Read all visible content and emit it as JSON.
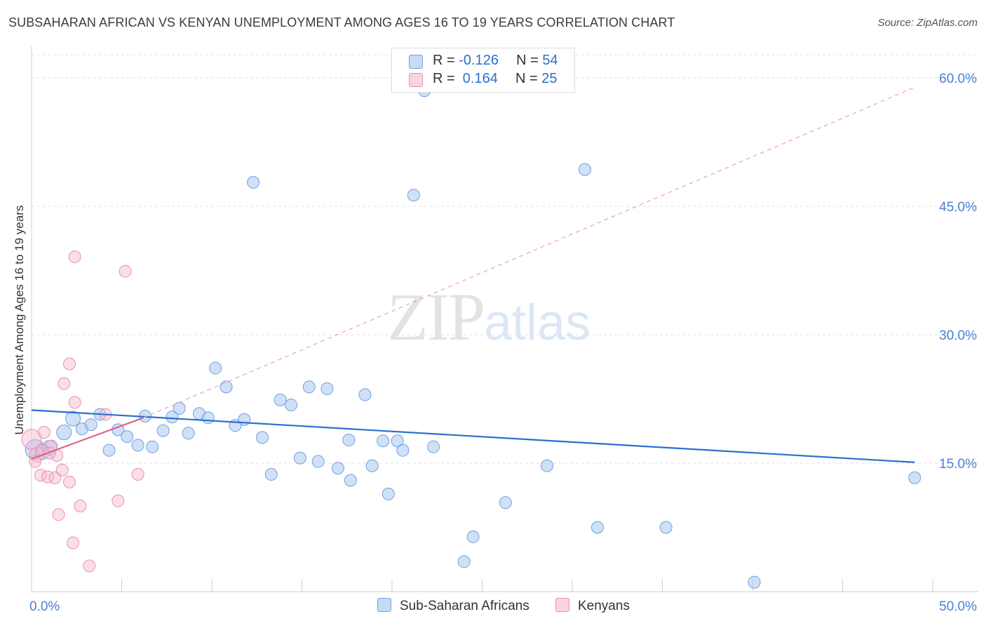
{
  "header": {
    "title": "SUBSAHARAN AFRICAN VS KENYAN UNEMPLOYMENT AMONG AGES 16 TO 19 YEARS CORRELATION CHART",
    "source": "Source: ZipAtlas.com"
  },
  "watermark": {
    "zip": "ZIP",
    "atlas": "atlas"
  },
  "legend_top": {
    "rows": [
      {
        "r_label": "R = ",
        "r_value": "-0.126",
        "n_label": "N = ",
        "n_value": "54",
        "color": "#a9c8f0"
      },
      {
        "r_label": "R = ",
        "r_value": " 0.164",
        "n_label": "N = ",
        "n_value": "25",
        "color": "#f5b9cc"
      }
    ]
  },
  "legend_bottom": {
    "items": [
      {
        "label": "Sub-Saharan Africans",
        "color": "#a9c8f0"
      },
      {
        "label": "Kenyans",
        "color": "#f5b9cc"
      }
    ]
  },
  "chart_data": {
    "type": "scatter",
    "title": "SUBSAHARAN AFRICAN VS KENYAN UNEMPLOYMENT AMONG AGES 16 TO 19 YEARS CORRELATION CHART",
    "xlabel": "",
    "ylabel": "Unemployment Among Ages 16 to 19 years",
    "xlim": [
      0,
      50
    ],
    "ylim": [
      0,
      62.7
    ],
    "x_tick_labels": [
      {
        "value": 0,
        "label": "0.0%"
      },
      {
        "value": 50,
        "label": "50.0%"
      }
    ],
    "y_tick_labels": [
      {
        "value": 15,
        "label": "15.0%"
      },
      {
        "value": 30,
        "label": "30.0%"
      },
      {
        "value": 45,
        "label": "45.0%"
      },
      {
        "value": 60,
        "label": "60.0%"
      }
    ],
    "grid": "horizontal dashed",
    "legend_position": "bottom-center",
    "series": [
      {
        "name": "Sub-Saharan Africans",
        "color": "#a9c8f0",
        "edge_color": "#6f9fe0",
        "trend": {
          "x": [
            0,
            49.0
          ],
          "y": [
            21.2,
            15.1
          ],
          "color": "#2b6fcf",
          "style": "solid"
        },
        "points": [
          {
            "x": 0.2,
            "y": 16.6,
            "s": 3
          },
          {
            "x": 0.6,
            "y": 16.3,
            "s": 2
          },
          {
            "x": 1.0,
            "y": 16.8,
            "s": 2
          },
          {
            "x": 1.8,
            "y": 18.6,
            "s": 2
          },
          {
            "x": 2.3,
            "y": 20.2,
            "s": 2
          },
          {
            "x": 2.8,
            "y": 19.0,
            "s": 1
          },
          {
            "x": 3.3,
            "y": 19.5,
            "s": 1
          },
          {
            "x": 3.8,
            "y": 20.7,
            "s": 1
          },
          {
            "x": 4.3,
            "y": 16.5,
            "s": 1
          },
          {
            "x": 4.8,
            "y": 18.9,
            "s": 1
          },
          {
            "x": 5.3,
            "y": 18.1,
            "s": 1
          },
          {
            "x": 5.9,
            "y": 17.1,
            "s": 1
          },
          {
            "x": 6.3,
            "y": 20.5,
            "s": 1
          },
          {
            "x": 6.7,
            "y": 16.9,
            "s": 1
          },
          {
            "x": 7.3,
            "y": 18.8,
            "s": 1
          },
          {
            "x": 7.8,
            "y": 20.4,
            "s": 1
          },
          {
            "x": 8.2,
            "y": 21.4,
            "s": 1
          },
          {
            "x": 8.7,
            "y": 18.5,
            "s": 1
          },
          {
            "x": 9.3,
            "y": 20.8,
            "s": 1
          },
          {
            "x": 9.8,
            "y": 20.3,
            "s": 1
          },
          {
            "x": 10.2,
            "y": 26.1,
            "s": 1
          },
          {
            "x": 10.8,
            "y": 23.9,
            "s": 1
          },
          {
            "x": 11.3,
            "y": 19.4,
            "s": 1
          },
          {
            "x": 11.8,
            "y": 20.1,
            "s": 1
          },
          {
            "x": 12.3,
            "y": 47.8,
            "s": 1
          },
          {
            "x": 12.8,
            "y": 18.0,
            "s": 1
          },
          {
            "x": 13.3,
            "y": 13.7,
            "s": 1
          },
          {
            "x": 13.8,
            "y": 22.4,
            "s": 1
          },
          {
            "x": 14.4,
            "y": 21.8,
            "s": 1
          },
          {
            "x": 14.9,
            "y": 15.6,
            "s": 1
          },
          {
            "x": 15.4,
            "y": 23.9,
            "s": 1
          },
          {
            "x": 15.9,
            "y": 15.2,
            "s": 1
          },
          {
            "x": 16.4,
            "y": 23.7,
            "s": 1
          },
          {
            "x": 17.0,
            "y": 14.4,
            "s": 1
          },
          {
            "x": 17.6,
            "y": 17.7,
            "s": 1
          },
          {
            "x": 17.7,
            "y": 13.0,
            "s": 1
          },
          {
            "x": 18.5,
            "y": 23.0,
            "s": 1
          },
          {
            "x": 18.9,
            "y": 14.7,
            "s": 1
          },
          {
            "x": 19.5,
            "y": 17.6,
            "s": 1
          },
          {
            "x": 19.8,
            "y": 11.4,
            "s": 1
          },
          {
            "x": 20.3,
            "y": 17.6,
            "s": 1
          },
          {
            "x": 20.6,
            "y": 16.5,
            "s": 1
          },
          {
            "x": 21.2,
            "y": 46.3,
            "s": 1
          },
          {
            "x": 22.3,
            "y": 16.9,
            "s": 1
          },
          {
            "x": 24.0,
            "y": 3.5,
            "s": 1
          },
          {
            "x": 24.5,
            "y": 6.4,
            "s": 1
          },
          {
            "x": 26.3,
            "y": 10.4,
            "s": 1
          },
          {
            "x": 28.6,
            "y": 14.7,
            "s": 1
          },
          {
            "x": 30.7,
            "y": 49.3,
            "s": 1
          },
          {
            "x": 31.4,
            "y": 7.5,
            "s": 1
          },
          {
            "x": 35.2,
            "y": 7.5,
            "s": 1
          },
          {
            "x": 40.1,
            "y": 1.1,
            "s": 1
          },
          {
            "x": 49.0,
            "y": 13.3,
            "s": 1
          },
          {
            "x": 21.8,
            "y": 58.5,
            "s": 1
          }
        ]
      },
      {
        "name": "Kenyans",
        "color": "#f5b9cc",
        "edge_color": "#ec8fad",
        "trend": {
          "x": [
            0,
            6.2
          ],
          "y": [
            15.5,
            20.3
          ],
          "color": "#e0628e",
          "style": "solid"
        },
        "trend_extension": {
          "x": [
            6.2,
            49.0
          ],
          "y": [
            20.3,
            58.9
          ],
          "color": "#eaa3b9",
          "style": "dashed"
        },
        "points": [
          {
            "x": 0.0,
            "y": 17.8,
            "s": 3
          },
          {
            "x": 0.3,
            "y": 16.0,
            "s": 2
          },
          {
            "x": 0.5,
            "y": 13.6,
            "s": 1
          },
          {
            "x": 0.7,
            "y": 18.6,
            "s": 1
          },
          {
            "x": 0.9,
            "y": 13.4,
            "s": 1
          },
          {
            "x": 1.1,
            "y": 17.0,
            "s": 1
          },
          {
            "x": 1.3,
            "y": 13.3,
            "s": 1
          },
          {
            "x": 1.4,
            "y": 15.9,
            "s": 1
          },
          {
            "x": 1.5,
            "y": 9.0,
            "s": 1
          },
          {
            "x": 1.7,
            "y": 14.2,
            "s": 1
          },
          {
            "x": 1.8,
            "y": 24.3,
            "s": 1
          },
          {
            "x": 2.1,
            "y": 12.8,
            "s": 1
          },
          {
            "x": 2.1,
            "y": 26.6,
            "s": 1
          },
          {
            "x": 2.3,
            "y": 5.7,
            "s": 1
          },
          {
            "x": 2.4,
            "y": 22.1,
            "s": 1
          },
          {
            "x": 2.4,
            "y": 39.1,
            "s": 1
          },
          {
            "x": 2.7,
            "y": 10.0,
            "s": 1
          },
          {
            "x": 3.2,
            "y": 3.0,
            "s": 1
          },
          {
            "x": 4.1,
            "y": 20.7,
            "s": 1
          },
          {
            "x": 4.8,
            "y": 10.6,
            "s": 1
          },
          {
            "x": 5.2,
            "y": 37.4,
            "s": 1
          },
          {
            "x": 5.9,
            "y": 13.7,
            "s": 1
          },
          {
            "x": 0.2,
            "y": 15.2,
            "s": 1
          },
          {
            "x": 0.6,
            "y": 16.6,
            "s": 1
          },
          {
            "x": 1.0,
            "y": 16.2,
            "s": 1
          }
        ]
      }
    ]
  }
}
